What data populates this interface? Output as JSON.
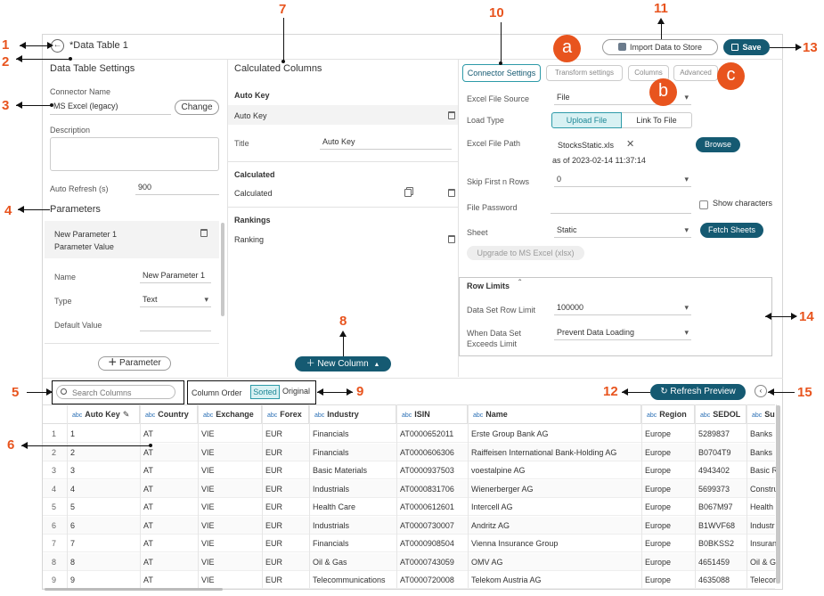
{
  "annotations": {
    "n1": "1",
    "n2": "2",
    "n3": "3",
    "n4": "4",
    "n5": "5",
    "n6": "6",
    "n7": "7",
    "n8": "8",
    "n9": "9",
    "n10": "10",
    "n11": "11",
    "n12": "12",
    "n13": "13",
    "n14": "14",
    "n15": "15",
    "a": "a",
    "b": "b",
    "c": "c"
  },
  "header": {
    "title": "*Data Table 1",
    "import_label": "Import Data to Store",
    "save_label": "Save"
  },
  "settings": {
    "section_title": "Data Table Settings",
    "connector_name_label": "Connector Name",
    "connector_name_value": "MS Excel (legacy)",
    "change_label": "Change",
    "description_label": "Description",
    "auto_refresh_label": "Auto Refresh (s)",
    "auto_refresh_value": "900",
    "parameters_title": "Parameters",
    "param_item_name": "New Parameter 1",
    "param_item_value": "Parameter Value",
    "name_label": "Name",
    "name_value": "New Parameter 1",
    "type_label": "Type",
    "type_value": "Text",
    "default_value_label": "Default Value",
    "add_parameter_label": "Parameter"
  },
  "calculated": {
    "section_title": "Calculated Columns",
    "auto_key_header": "Auto Key",
    "auto_key_item": "Auto Key",
    "title_label": "Title",
    "title_value": "Auto Key",
    "calculated_header": "Calculated",
    "calculated_item": "Calculated",
    "rankings_header": "Rankings",
    "rankings_item": "Ranking",
    "new_column_label": "New Column"
  },
  "connector": {
    "tabs": {
      "connector_settings": "Connector Settings",
      "transform": "Transform settings",
      "columns": "Columns",
      "advanced": "Advanced"
    },
    "file_source_label": "Excel File Source",
    "file_source_value": "File",
    "load_type_label": "Load Type",
    "upload_file": "Upload File",
    "link_to_file": "Link To File",
    "file_path_label": "Excel File Path",
    "file_name": "StocksStatic.xls",
    "file_date": "as of 2023-02-14 11:37:14",
    "browse_label": "Browse",
    "skip_rows_label": "Skip First n Rows",
    "skip_rows_value": "0",
    "password_label": "File Password",
    "show_chars_label": "Show characters",
    "sheet_label": "Sheet",
    "sheet_value": "Static",
    "fetch_sheets_label": "Fetch Sheets",
    "upgrade_label": "Upgrade to MS Excel (xlsx)",
    "row_limits_title": "Row Limits",
    "row_limit_label": "Data Set Row Limit",
    "row_limit_value": "100000",
    "exceeds_label_1": "When Data Set",
    "exceeds_label_2": "Exceeds Limit",
    "exceeds_value": "Prevent Data Loading"
  },
  "toolbar": {
    "search_placeholder": "Search Columns",
    "column_order_label": "Column Order",
    "sorted_label": "Sorted",
    "original_label": "Original",
    "refresh_label": "Refresh Preview"
  },
  "grid": {
    "type_tag": "abc",
    "columns": [
      "Auto Key",
      "Country",
      "Exchange",
      "Forex",
      "Industry",
      "ISIN",
      "Name",
      "Region",
      "SEDOL",
      "Su"
    ],
    "rows": [
      [
        "1",
        "1",
        "AT",
        "VIE",
        "EUR",
        "Financials",
        "AT0000652011",
        "Erste Group Bank AG",
        "Europe",
        "5289837",
        "Banks"
      ],
      [
        "2",
        "2",
        "AT",
        "VIE",
        "EUR",
        "Financials",
        "AT0000606306",
        "Raiffeisen International Bank-Holding AG",
        "Europe",
        "B0704T9",
        "Banks"
      ],
      [
        "3",
        "3",
        "AT",
        "VIE",
        "EUR",
        "Basic Materials",
        "AT0000937503",
        "voestalpine AG",
        "Europe",
        "4943402",
        "Basic R"
      ],
      [
        "4",
        "4",
        "AT",
        "VIE",
        "EUR",
        "Industrials",
        "AT0000831706",
        "Wienerberger AG",
        "Europe",
        "5699373",
        "Constru"
      ],
      [
        "5",
        "5",
        "AT",
        "VIE",
        "EUR",
        "Health Care",
        "AT0000612601",
        "Intercell AG",
        "Europe",
        "B067M97",
        "Health"
      ],
      [
        "6",
        "6",
        "AT",
        "VIE",
        "EUR",
        "Industrials",
        "AT0000730007",
        "Andritz AG",
        "Europe",
        "B1WVF68",
        "Industr"
      ],
      [
        "7",
        "7",
        "AT",
        "VIE",
        "EUR",
        "Financials",
        "AT0000908504",
        "Vienna Insurance Group",
        "Europe",
        "B0BKSS2",
        "Insuran"
      ],
      [
        "8",
        "8",
        "AT",
        "VIE",
        "EUR",
        "Oil & Gas",
        "AT0000743059",
        "OMV AG",
        "Europe",
        "4651459",
        "Oil & G"
      ],
      [
        "9",
        "9",
        "AT",
        "VIE",
        "EUR",
        "Telecommunications",
        "AT0000720008",
        "Telekom Austria AG",
        "Europe",
        "4635088",
        "Telecor"
      ]
    ]
  }
}
